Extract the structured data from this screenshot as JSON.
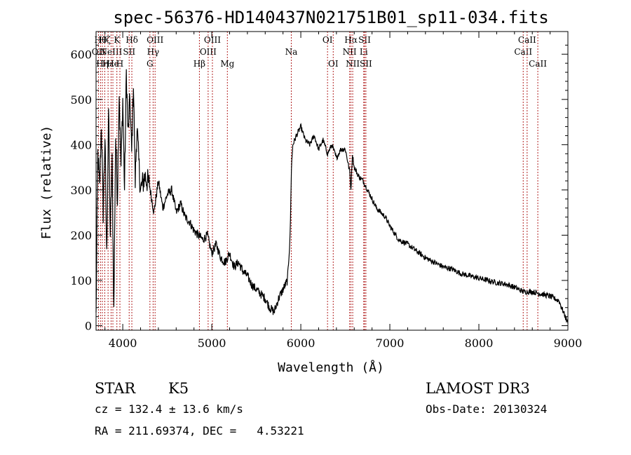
{
  "chart_data": {
    "type": "line",
    "title": "spec-56376-HD140437N021751B01_sp11-034.fits",
    "xlabel": "Wavelength (Å)",
    "ylabel": "Flux (relative)",
    "xlim": [
      3700,
      9000
    ],
    "ylim": [
      -10,
      650
    ],
    "xticks": [
      4000,
      5000,
      6000,
      7000,
      8000,
      9000
    ],
    "yticks": [
      0,
      100,
      200,
      300,
      400,
      500,
      600
    ],
    "series": [
      {
        "name": "spectrum",
        "x": [
          3700,
          3720,
          3740,
          3760,
          3780,
          3800,
          3820,
          3840,
          3860,
          3880,
          3900,
          3920,
          3940,
          3960,
          3980,
          4000,
          4020,
          4040,
          4060,
          4080,
          4100,
          4120,
          4140,
          4160,
          4180,
          4200,
          4250,
          4300,
          4350,
          4400,
          4450,
          4500,
          4550,
          4600,
          4650,
          4700,
          4750,
          4800,
          4850,
          4900,
          4950,
          5000,
          5050,
          5100,
          5150,
          5200,
          5250,
          5300,
          5350,
          5400,
          5450,
          5500,
          5550,
          5600,
          5650,
          5700,
          5750,
          5800,
          5850,
          5880,
          5895,
          5910,
          5950,
          6000,
          6050,
          6100,
          6150,
          6200,
          6250,
          6300,
          6350,
          6400,
          6450,
          6500,
          6550,
          6563,
          6580,
          6600,
          6650,
          6700,
          6750,
          6800,
          6850,
          6900,
          6950,
          7000,
          7100,
          7200,
          7300,
          7400,
          7500,
          7600,
          7700,
          7800,
          7900,
          8000,
          8100,
          8200,
          8300,
          8400,
          8500,
          8600,
          8700,
          8800,
          8900,
          8950,
          9000
        ],
        "values": [
          20,
          380,
          300,
          450,
          250,
          420,
          150,
          480,
          200,
          360,
          30,
          420,
          280,
          520,
          350,
          500,
          300,
          560,
          420,
          500,
          380,
          540,
          320,
          440,
          360,
          300,
          330,
          310,
          250,
          320,
          260,
          290,
          300,
          250,
          270,
          240,
          230,
          210,
          200,
          190,
          200,
          160,
          180,
          150,
          140,
          160,
          130,
          140,
          120,
          110,
          90,
          80,
          70,
          60,
          40,
          30,
          60,
          80,
          100,
          200,
          350,
          400,
          420,
          440,
          410,
          400,
          420,
          390,
          410,
          380,
          400,
          370,
          390,
          390,
          340,
          300,
          380,
          350,
          330,
          320,
          300,
          280,
          260,
          250,
          240,
          220,
          190,
          180,
          165,
          150,
          140,
          130,
          125,
          115,
          110,
          105,
          100,
          95,
          92,
          85,
          75,
          75,
          70,
          65,
          55,
          30,
          5
        ]
      }
    ],
    "lines": [
      {
        "w": 3727,
        "label": "OII",
        "row": 2
      },
      {
        "w": 3750,
        "label": "Hθ",
        "row": 1
      },
      {
        "w": 3771,
        "label": "Hη",
        "row": 3
      },
      {
        "w": 3798,
        "label": "Hζ",
        "row": 1
      },
      {
        "w": 3835,
        "label": "Hε",
        "row": 3
      },
      {
        "w": 3869,
        "label": "NeIII",
        "row": 2
      },
      {
        "w": 3889,
        "label": "He",
        "row": 3
      },
      {
        "w": 3934,
        "label": "K",
        "row": 1
      },
      {
        "w": 3968,
        "label": "H",
        "row": 3
      },
      {
        "w": 4072,
        "label": "SII",
        "row": 2
      },
      {
        "w": 4102,
        "label": "Hδ",
        "row": 1
      },
      {
        "w": 4305,
        "label": "G",
        "row": 3
      },
      {
        "w": 4341,
        "label": "Hγ",
        "row": 2
      },
      {
        "w": 4363,
        "label": "OIII",
        "row": 1
      },
      {
        "w": 4861,
        "label": "Hβ",
        "row": 3
      },
      {
        "w": 4959,
        "label": "OIII",
        "row": 2
      },
      {
        "w": 5007,
        "label": "OIII",
        "row": 1
      },
      {
        "w": 5175,
        "label": "Mg",
        "row": 3
      },
      {
        "w": 5893,
        "label": "Na",
        "row": 2
      },
      {
        "w": 6300,
        "label": "OI",
        "row": 1
      },
      {
        "w": 6364,
        "label": "OI",
        "row": 3
      },
      {
        "w": 6548,
        "label": "NII",
        "row": 2
      },
      {
        "w": 6563,
        "label": "Hα",
        "row": 1
      },
      {
        "w": 6583,
        "label": "NII",
        "row": 3
      },
      {
        "w": 6707,
        "label": "Li",
        "row": 2
      },
      {
        "w": 6716,
        "label": "SII",
        "row": 1
      },
      {
        "w": 6731,
        "label": "SII",
        "row": 3
      },
      {
        "w": 8498,
        "label": "CaII",
        "row": 2
      },
      {
        "w": 8542,
        "label": "CaII",
        "row": 1
      },
      {
        "w": 8662,
        "label": "CaII",
        "row": 3
      }
    ]
  },
  "info": {
    "class": "STAR",
    "subclass": "K5",
    "survey": "LAMOST DR3",
    "cz": "cz = 132.4 ± 13.6 km/s",
    "obsdate": "Obs-Date: 20130324",
    "radec": "RA = 211.69374, DEC =   4.53221"
  },
  "colors": {
    "spectrum": "#000000",
    "lines": "#b22222",
    "axis": "#000000"
  }
}
